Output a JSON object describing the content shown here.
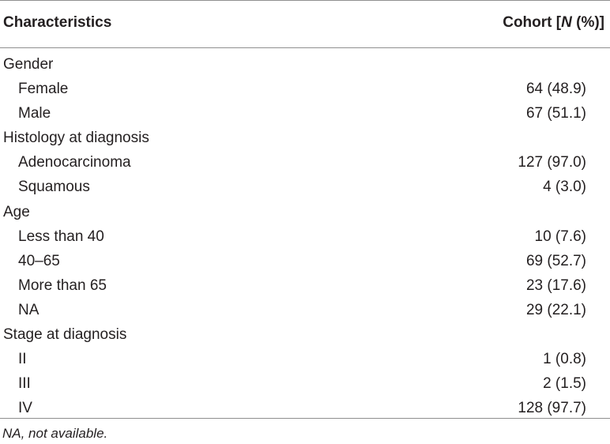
{
  "header": {
    "characteristics": "Characteristics",
    "cohort_prefix": "Cohort [",
    "cohort_italic": "N",
    "cohort_suffix": " (%)]"
  },
  "rows": [
    {
      "label": "Gender",
      "value": "",
      "indent": false
    },
    {
      "label": "Female",
      "value": "64 (48.9)",
      "indent": true
    },
    {
      "label": "Male",
      "value": "67 (51.1)",
      "indent": true
    },
    {
      "label": "Histology at diagnosis",
      "value": "",
      "indent": false
    },
    {
      "label": "Adenocarcinoma",
      "value": "127 (97.0)",
      "indent": true
    },
    {
      "label": "Squamous",
      "value": "4 (3.0)",
      "indent": true
    },
    {
      "label": "Age",
      "value": "",
      "indent": false
    },
    {
      "label": "Less than 40",
      "value": "10 (7.6)",
      "indent": true
    },
    {
      "label": "40–65",
      "value": "69 (52.7)",
      "indent": true
    },
    {
      "label": "More than 65",
      "value": "23 (17.6)",
      "indent": true
    },
    {
      "label": "NA",
      "value": "29 (22.1)",
      "indent": true
    },
    {
      "label": "Stage at diagnosis",
      "value": "",
      "indent": false
    },
    {
      "label": "II",
      "value": "1 (0.8)",
      "indent": true
    },
    {
      "label": "III",
      "value": "2 (1.5)",
      "indent": true
    },
    {
      "label": "IV",
      "value": "128 (97.7)",
      "indent": true
    }
  ],
  "footnote": "NA, not available."
}
